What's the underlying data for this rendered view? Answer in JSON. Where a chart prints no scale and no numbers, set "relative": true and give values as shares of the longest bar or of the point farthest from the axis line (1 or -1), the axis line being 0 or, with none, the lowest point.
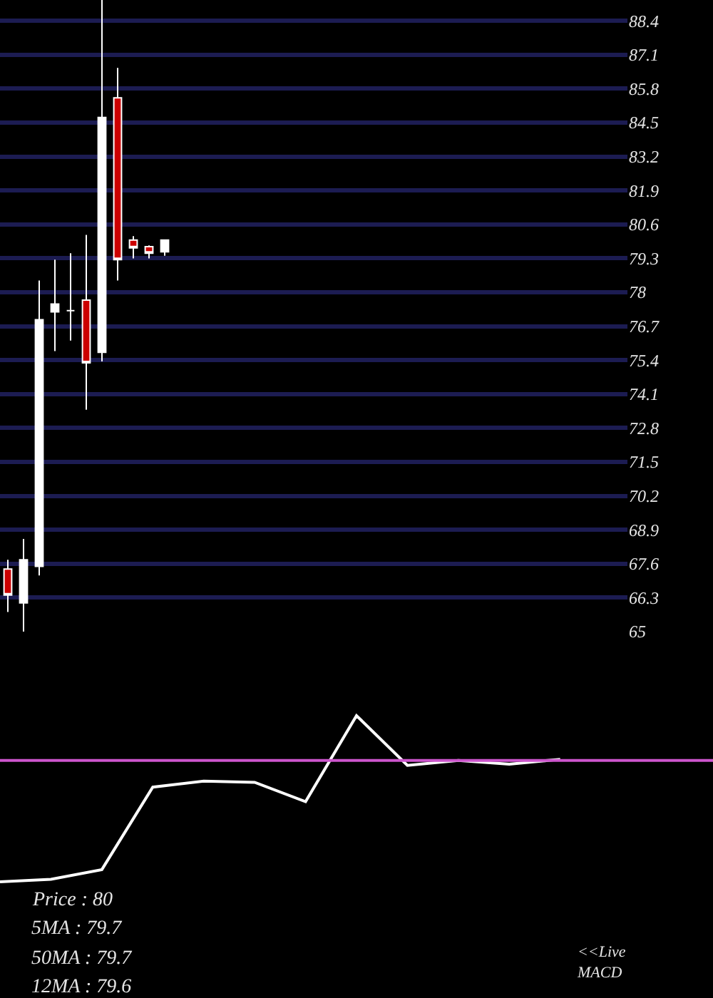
{
  "chart_data": [
    {
      "type": "candlestick",
      "categories": [
        null,
        null,
        null,
        null,
        null,
        null,
        null,
        null,
        null,
        null,
        null,
        null,
        null,
        null,
        null,
        null,
        null,
        null,
        null,
        null,
        null,
        null,
        null,
        null,
        null,
        null,
        null,
        null,
        null,
        null,
        null,
        null,
        null,
        null,
        null,
        null,
        null,
        null,
        null,
        null
      ],
      "ohlc": [
        [
          67.4,
          67.75,
          65.75,
          66.4
        ],
        [
          66.1,
          68.55,
          65.0,
          67.75
        ],
        [
          67.5,
          78.45,
          67.15,
          76.95
        ],
        [
          77.25,
          79.25,
          75.75,
          77.55
        ],
        [
          77.3,
          79.5,
          76.15,
          77.3
        ],
        [
          77.7,
          80.2,
          73.5,
          75.3
        ],
        [
          75.7,
          89.2,
          75.35,
          84.7
        ],
        [
          85.45,
          86.6,
          78.45,
          79.25
        ],
        [
          80.0,
          80.15,
          79.3,
          79.7
        ],
        [
          79.75,
          79.8,
          79.3,
          79.5
        ],
        [
          79.55,
          80.0,
          79.4,
          80.0
        ],
        null,
        null,
        null,
        null,
        null,
        null,
        null,
        null,
        null,
        null,
        null,
        null,
        null,
        null,
        null,
        null,
        null,
        null,
        null,
        null,
        null,
        null,
        null,
        null,
        null,
        null,
        null,
        null,
        null
      ],
      "colors": [
        "#cc0000",
        "#ffffff",
        "#ffffff",
        "#ffffff",
        "#ffffff",
        "#cc0000",
        "#ffffff",
        "#cc0000",
        "#cc0000",
        "#cc0000",
        "#ffffff",
        null,
        null,
        null,
        null,
        null,
        null,
        null,
        null,
        null,
        null,
        null,
        null,
        null,
        null,
        null,
        null,
        null,
        null,
        null,
        null,
        null,
        null,
        null,
        null,
        null,
        null,
        null,
        null,
        null
      ],
      "ylim": [
        65,
        89.2
      ],
      "yticks": [
        65,
        66.3,
        67.6,
        68.9,
        70.2,
        71.5,
        72.8,
        74.1,
        75.4,
        76.7,
        78,
        79.3,
        80.6,
        81.9,
        83.2,
        84.5,
        85.8,
        87.1,
        88.4
      ],
      "grid": "y",
      "tick_labels": "y",
      "annotations": [
        "Price : 80",
        "5MA : 79.7",
        "50MA : 79.7",
        "12MA : 79.6"
      ]
    },
    {
      "type": "line",
      "relative": true,
      "categories": [
        null,
        null,
        null,
        null,
        null,
        null,
        null,
        null,
        null,
        null,
        null,
        null,
        null,
        null,
        null
      ],
      "series": [
        {
          "color": "#ffffff",
          "values": [
            -1,
            -0.98,
            -0.9,
            -0.22,
            -0.17,
            -0.18,
            -0.34,
            0.37,
            -0.04,
            0,
            -0.03,
            0.01,
            null,
            null,
            null
          ]
        }
      ],
      "ref_lines": [
        {
          "axis": "y",
          "value": 0,
          "color": "#cc55cc"
        }
      ],
      "tick_labels": false,
      "annotations": [
        "<<Live MACD"
      ]
    }
  ]
}
